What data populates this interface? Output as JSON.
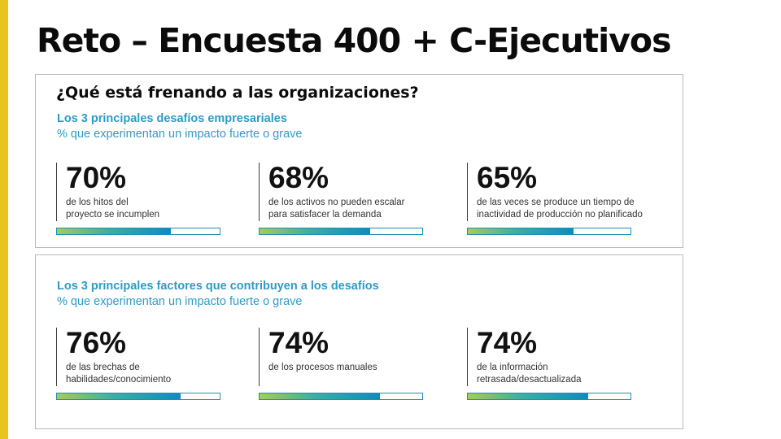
{
  "slide": {
    "title": "Reto – Encuesta 400 + C-Ejecutivos"
  },
  "colors": {
    "accent": "#e8c51d",
    "subhead": "#2f9bc4",
    "bar_border": "#1d8fb7",
    "bar_gradient_start": "#a6cc5a",
    "bar_gradient_end": "#0e8bbf"
  },
  "panel1": {
    "question": "¿Qué está frenando a las organizaciones?",
    "subhead": "Los 3 principales desafíos empresariales",
    "note": "% que experimentan un impacto fuerte o grave",
    "stats": [
      {
        "value": "70%",
        "line1": "de los hitos del",
        "line2": "proyecto se incumplen",
        "percent": 70
      },
      {
        "value": "68%",
        "line1": "de los activos no pueden escalar",
        "line2": "para satisfacer la demanda",
        "percent": 68
      },
      {
        "value": "65%",
        "line1": "de las veces se produce un tiempo de",
        "line2": "inactividad de producción no planificado",
        "percent": 65
      }
    ]
  },
  "panel2": {
    "subhead": "Los 3 principales factores que contribuyen a los desafíos",
    "note": "% que experimentan un impacto fuerte o grave",
    "stats": [
      {
        "value": "76%",
        "line1": "de las brechas de",
        "line2": "habilidades/conocimiento",
        "percent": 76
      },
      {
        "value": "74%",
        "line1": "de los procesos manuales",
        "line2": "",
        "percent": 74
      },
      {
        "value": "74%",
        "line1": "de la información",
        "line2": "retrasada/desactualizada",
        "percent": 74
      }
    ]
  }
}
